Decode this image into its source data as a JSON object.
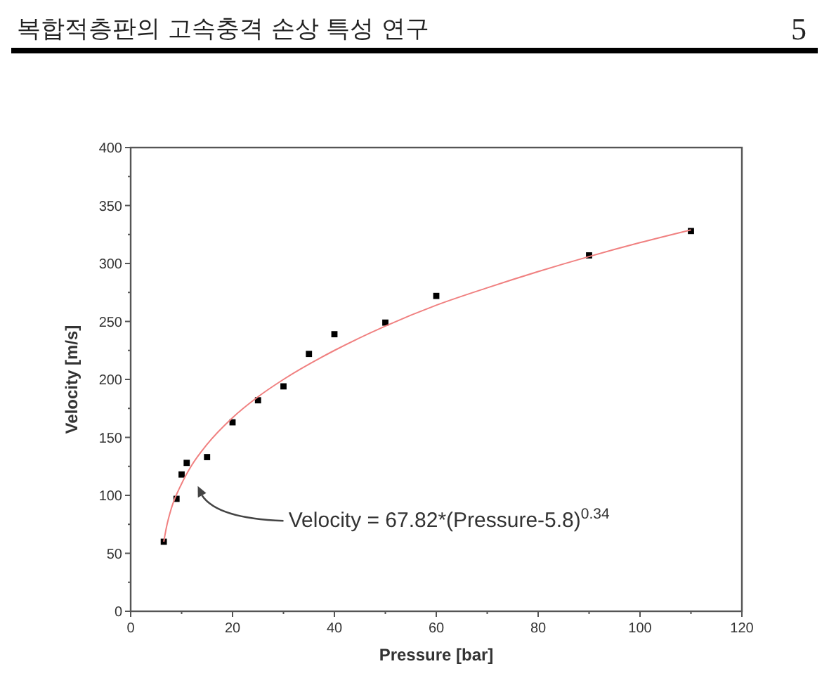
{
  "chart_data": {
    "type": "scatter",
    "xlabel": "Pressure [bar]",
    "ylabel": "Velocity [m/s]",
    "xlim": [
      0,
      120
    ],
    "xticks": [
      0,
      20,
      40,
      60,
      80,
      100,
      120
    ],
    "ylim": [
      0,
      400
    ],
    "yticks": [
      0,
      50,
      100,
      150,
      200,
      250,
      300,
      350,
      400
    ],
    "grid": false,
    "series": [
      {
        "marker": "square",
        "color": "#000000",
        "x": [
          6.5,
          9,
          10,
          11,
          15,
          20,
          25,
          30,
          35,
          40,
          50,
          60,
          90,
          110
        ],
        "values": [
          60,
          97,
          118,
          128,
          133,
          163,
          182,
          194,
          222,
          239,
          249,
          272,
          307,
          328
        ]
      },
      {
        "type": "line",
        "marker": "none",
        "line_style": "solid",
        "color": "#f08080",
        "x": [
          6.5,
          7,
          8,
          10,
          12,
          15,
          20,
          25,
          30,
          40,
          50,
          60,
          70,
          80,
          90,
          100,
          110
        ],
        "values": [
          60,
          72,
          89,
          110,
          126,
          144,
          167,
          185,
          200,
          225,
          246,
          264,
          279,
          293,
          306,
          318,
          329
        ]
      }
    ],
    "annotations": [
      "복합적층판의 고속충격 손상 특성 연구",
      "5",
      "Velocity = 67.82*(Pressure-5.8)$^{0.34}$"
    ]
  }
}
